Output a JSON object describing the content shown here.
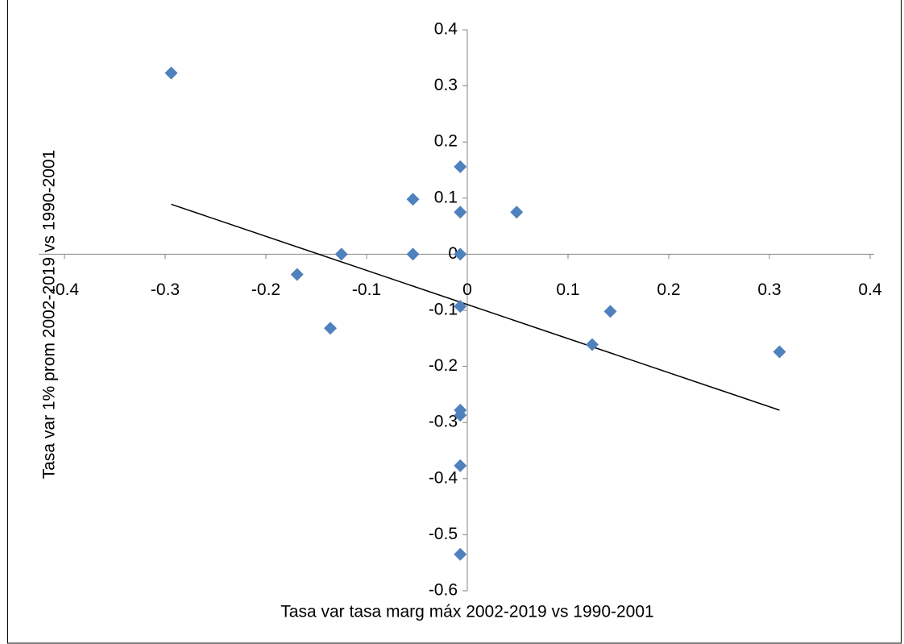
{
  "chart_data": {
    "type": "scatter",
    "x_label": "Tasa var tasa marg máx 2002-2019 vs 1990-2001",
    "y_label": "Tasa var 1% prom 2002-2019 vs 1990-2001",
    "xlim": [
      -0.4,
      0.4
    ],
    "ylim": [
      -0.6,
      0.4
    ],
    "xticks": [
      -0.4,
      -0.3,
      -0.2,
      -0.1,
      0,
      0.1,
      0.2,
      0.3,
      0.4
    ],
    "yticks": [
      -0.6,
      -0.5,
      -0.4,
      -0.3,
      -0.2,
      -0.1,
      0,
      0.1,
      0.2,
      0.3,
      0.4
    ],
    "series": [
      {
        "color": "#4f81bd",
        "x": [
          -0.294,
          -0.007,
          -0.054,
          -0.007,
          0.049,
          -0.125,
          -0.054,
          -0.007,
          -0.169,
          -0.007,
          0.142,
          -0.136,
          0.124,
          0.31,
          -0.007,
          -0.007,
          -0.007,
          -0.007
        ],
        "values": [
          0.323,
          0.156,
          0.098,
          0.075,
          0.075,
          0,
          0,
          0,
          -0.036,
          -0.093,
          -0.102,
          -0.132,
          -0.161,
          -0.174,
          -0.278,
          -0.287,
          -0.377,
          -0.535
        ]
      }
    ],
    "trendline": {
      "color": "#000000",
      "x": [
        -0.294,
        0.31
      ],
      "values": [
        0.089,
        -0.278
      ]
    }
  }
}
